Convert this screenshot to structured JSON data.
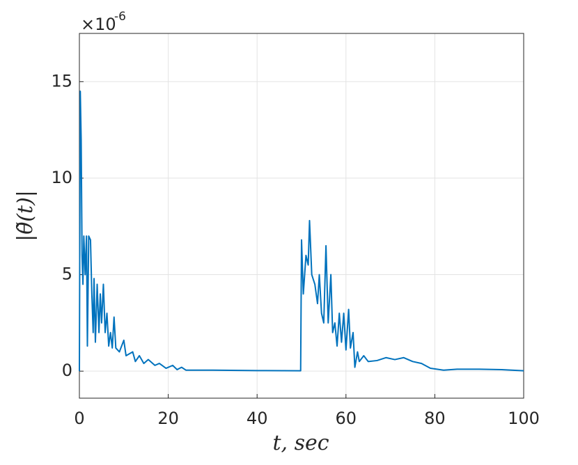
{
  "chart_data": {
    "type": "line",
    "x_label": "t,  sec",
    "y_label": "|θ̃(t)|",
    "y_scale_base": "×10",
    "y_scale_exponent": "-6",
    "xlim": [
      0,
      100
    ],
    "xticks": [
      0,
      20,
      40,
      60,
      80,
      100
    ],
    "ylim": [
      -1.4,
      17.5
    ],
    "yticks": [
      0,
      5,
      10,
      15
    ],
    "grid": true,
    "series": [
      {
        "color": "#0072bd",
        "x": [
          0,
          0.2,
          0.4,
          0.6,
          0.8,
          1,
          1.3,
          1.6,
          1.8,
          2.1,
          2.5,
          2.8,
          3.1,
          3.3,
          3.6,
          4,
          4.4,
          4.7,
          5,
          5.4,
          5.8,
          6.2,
          6.6,
          7,
          7.4,
          7.8,
          8.2,
          9,
          10,
          10.5,
          12,
          12.6,
          13.5,
          14.5,
          15.5,
          17,
          18,
          19.5,
          21,
          22,
          23,
          24,
          30,
          40,
          49.8,
          50,
          50.4,
          51,
          51.5,
          51.8,
          52.3,
          53,
          53.6,
          54,
          54.5,
          55,
          55.5,
          56,
          56.6,
          57,
          57.5,
          58,
          58.5,
          59,
          59.5,
          60,
          60.6,
          61,
          61.6,
          62,
          62.6,
          63,
          64,
          65,
          67,
          69,
          71,
          73,
          75,
          77,
          79,
          82,
          85,
          90,
          95,
          100
        ],
        "values": [
          0,
          14.5,
          12,
          6,
          4.5,
          7,
          5,
          7,
          1.3,
          7,
          6.8,
          4,
          2,
          4.8,
          1.5,
          4.5,
          2,
          4,
          2.5,
          4.5,
          2,
          3,
          1.3,
          2,
          1.2,
          2.8,
          1.2,
          1,
          1.6,
          0.8,
          1,
          0.5,
          0.8,
          0.4,
          0.6,
          0.3,
          0.4,
          0.15,
          0.3,
          0.08,
          0.2,
          0.05,
          0.05,
          0.03,
          0.02,
          6.8,
          4,
          6,
          5.5,
          7.8,
          5,
          4.5,
          3.5,
          5,
          3,
          2.5,
          6.5,
          2.5,
          5,
          2,
          2.5,
          1.3,
          3,
          1.5,
          3,
          1.1,
          3.2,
          1.2,
          2,
          0.2,
          1,
          0.5,
          0.8,
          0.5,
          0.55,
          0.7,
          0.6,
          0.7,
          0.5,
          0.4,
          0.15,
          0.05,
          0.1,
          0.1,
          0.08,
          0.02
        ]
      }
    ]
  }
}
